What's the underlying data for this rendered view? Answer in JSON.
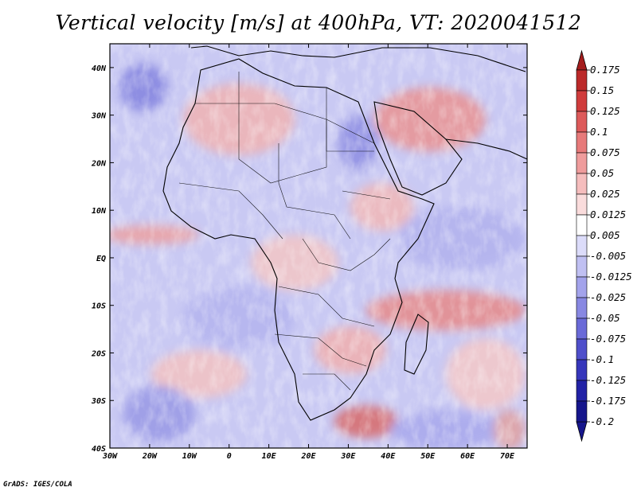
{
  "title": "Vertical velocity [m/s] at 400hPa, VT: 2020041512",
  "credit": "GrADS: IGES/COLA",
  "map": {
    "variable": "Vertical velocity",
    "units": "m/s",
    "level": "400hPa",
    "valid_time": "2020041512",
    "lon_range": [
      -30,
      75
    ],
    "lat_range": [
      -40,
      45
    ],
    "lat_ticks": [
      {
        "value": 40,
        "label": "40N"
      },
      {
        "value": 30,
        "label": "30N"
      },
      {
        "value": 20,
        "label": "20N"
      },
      {
        "value": 10,
        "label": "10N"
      },
      {
        "value": 0,
        "label": "EQ"
      },
      {
        "value": -10,
        "label": "10S"
      },
      {
        "value": -20,
        "label": "20S"
      },
      {
        "value": -30,
        "label": "30S"
      },
      {
        "value": -40,
        "label": "40S"
      }
    ],
    "lon_ticks": [
      {
        "value": -30,
        "label": "30W"
      },
      {
        "value": -20,
        "label": "20W"
      },
      {
        "value": -10,
        "label": "10W"
      },
      {
        "value": 0,
        "label": "0"
      },
      {
        "value": 10,
        "label": "10E"
      },
      {
        "value": 20,
        "label": "20E"
      },
      {
        "value": 30,
        "label": "30E"
      },
      {
        "value": 40,
        "label": "40E"
      },
      {
        "value": 50,
        "label": "50E"
      },
      {
        "value": 60,
        "label": "60E"
      },
      {
        "value": 70,
        "label": "70E"
      }
    ]
  },
  "colorbar": {
    "labels": [
      "0.175",
      "0.15",
      "0.125",
      "0.1",
      "0.075",
      "0.05",
      "0.025",
      "0.0125",
      "0.005",
      "-0.005",
      "-0.0125",
      "-0.025",
      "-0.05",
      "-0.075",
      "-0.1",
      "-0.125",
      "-0.175",
      "-0.2"
    ],
    "colors": [
      "#a51d1d",
      "#bc2a2a",
      "#d03c3c",
      "#dd5a5a",
      "#e77a7a",
      "#ef9c9c",
      "#f5bdbd",
      "#fadcdc",
      "#ffffff",
      "#dcdcfa",
      "#c0c0f2",
      "#a3a3eb",
      "#8888e2",
      "#6a6ad8",
      "#4f4fcb",
      "#3636bb",
      "#2222a6",
      "#16168c"
    ]
  }
}
